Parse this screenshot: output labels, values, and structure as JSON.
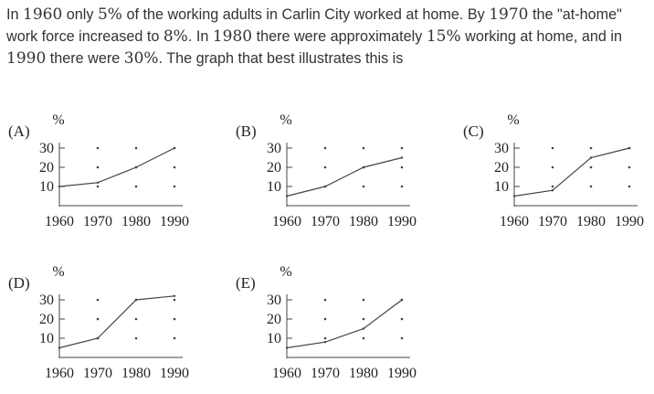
{
  "question": {
    "parts": [
      {
        "t": "In "
      },
      {
        "t": "1960",
        "num": true
      },
      {
        "t": " only "
      },
      {
        "t": "5%",
        "num": true
      },
      {
        "t": " of the working adults in Carlin City worked at home. By "
      },
      {
        "t": "1970",
        "num": true
      },
      {
        "t": " the \"at-home\" work force increased to "
      },
      {
        "t": "8%",
        "num": true
      },
      {
        "t": ". In "
      },
      {
        "t": "1980",
        "num": true
      },
      {
        "t": " there were approximately "
      },
      {
        "t": "15%",
        "num": true
      },
      {
        "t": " working at home, and in "
      },
      {
        "t": "1990",
        "num": true
      },
      {
        "t": " there were "
      },
      {
        "t": "30%",
        "num": true
      },
      {
        "t": ". The graph that best illustrates this is"
      }
    ]
  },
  "chart_data": [
    {
      "type": "line",
      "option_label": "(A)",
      "ylabel": "%",
      "categories": [
        "1960",
        "1970",
        "1980",
        "1990"
      ],
      "y_ticks": [
        10,
        20,
        30
      ],
      "ylim": [
        0,
        35
      ],
      "values": [
        10,
        12,
        20,
        30
      ]
    },
    {
      "type": "line",
      "option_label": "(B)",
      "ylabel": "%",
      "categories": [
        "1960",
        "1970",
        "1980",
        "1990"
      ],
      "y_ticks": [
        10,
        20,
        30
      ],
      "ylim": [
        0,
        35
      ],
      "values": [
        5,
        10,
        20,
        25
      ]
    },
    {
      "type": "line",
      "option_label": "(C)",
      "ylabel": "%",
      "categories": [
        "1960",
        "1970",
        "1980",
        "1990"
      ],
      "y_ticks": [
        10,
        20,
        30
      ],
      "ylim": [
        0,
        35
      ],
      "values": [
        5,
        8,
        25,
        30
      ]
    },
    {
      "type": "line",
      "option_label": "(D)",
      "ylabel": "%",
      "categories": [
        "1960",
        "1970",
        "1980",
        "1990"
      ],
      "y_ticks": [
        10,
        20,
        30
      ],
      "ylim": [
        0,
        35
      ],
      "values": [
        5,
        10,
        30,
        32
      ]
    },
    {
      "type": "line",
      "option_label": "(E)",
      "ylabel": "%",
      "categories": [
        "1960",
        "1970",
        "1980",
        "1990"
      ],
      "y_ticks": [
        10,
        20,
        30
      ],
      "ylim": [
        0,
        35
      ],
      "values": [
        5,
        8,
        15,
        30
      ]
    }
  ],
  "colors": {
    "text": "#333333",
    "line": "#444444"
  }
}
